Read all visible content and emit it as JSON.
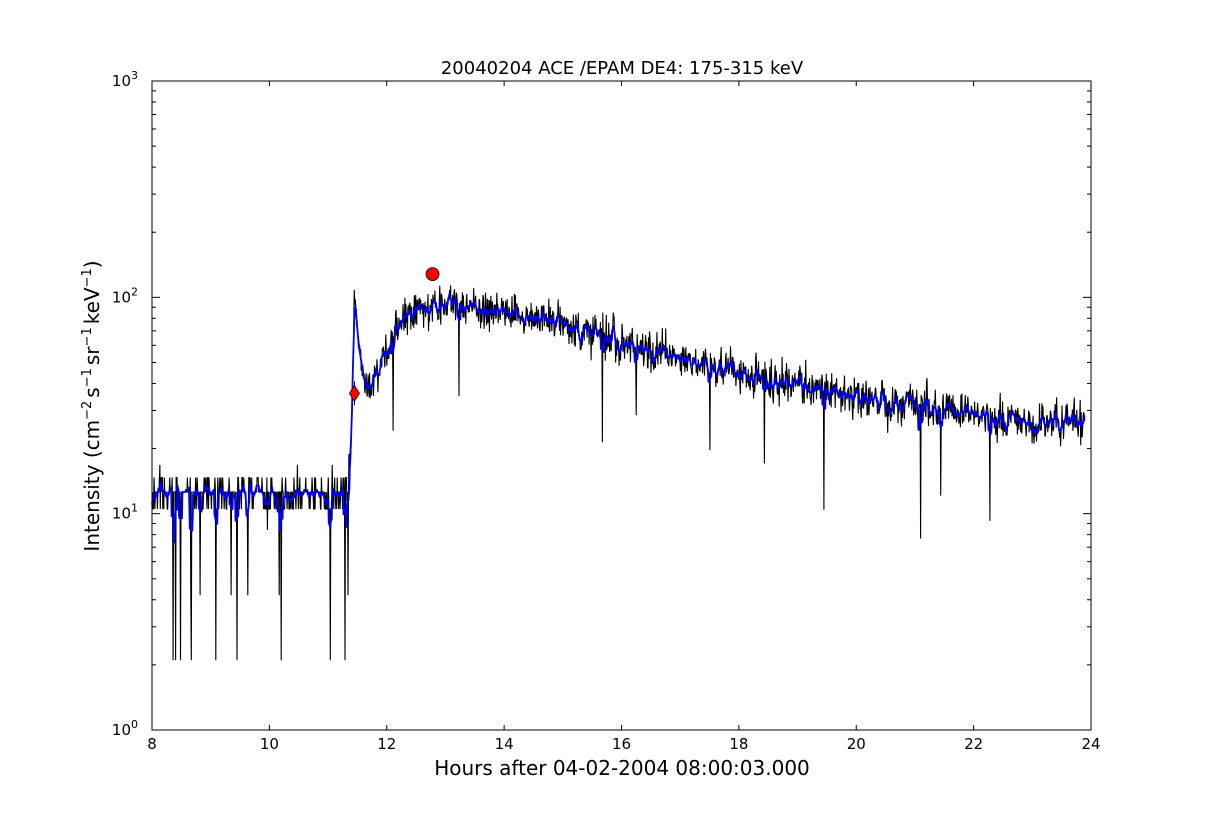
{
  "chart_data": {
    "type": "line",
    "title": "20040204 ACE /EPAM DE4: 175-315 keV",
    "xlabel": "Hours after 04-02-2004 08:00:03.000",
    "ylabel": {
      "prefix": "Intensity (cm",
      "sup1": "−2",
      "part2": "s",
      "sup2": "−1",
      "part3": "sr",
      "sup3": "−1",
      "part4": "keV",
      "sup4": "−1",
      "suffix": ")"
    },
    "x_ticks": [
      "8",
      "10",
      "12",
      "14",
      "16",
      "18",
      "20",
      "22",
      "24"
    ],
    "y_ticks": [
      {
        "base": "10",
        "exp": "0"
      },
      {
        "base": "10",
        "exp": "1"
      },
      {
        "base": "10",
        "exp": "2"
      },
      {
        "base": "10",
        "exp": "3"
      }
    ],
    "xlim": [
      8,
      24
    ],
    "ylim": [
      1,
      1000
    ],
    "yscale": "log",
    "grid": false,
    "series_colors": {
      "raw": "#000000",
      "smoothed": "#0000ff",
      "markers": "#ff0000"
    },
    "series": [
      {
        "type": "line",
        "x": [
          8.0,
          8.5,
          9.0,
          9.5,
          10.0,
          10.5,
          11.0,
          11.3,
          11.38,
          11.42,
          11.45,
          11.5,
          11.6,
          11.7,
          11.8,
          12.0,
          12.2,
          12.5,
          12.8,
          13.0,
          13.5,
          14.0,
          14.5,
          15.0,
          15.5,
          16.0,
          16.5,
          17.0,
          17.5,
          18.0,
          18.5,
          19.0,
          19.5,
          20.0,
          20.5,
          21.0,
          21.5,
          22.0,
          22.5,
          23.0,
          23.5,
          23.9
        ],
        "values": [
          12,
          13,
          12,
          12.5,
          12,
          12.5,
          12,
          13,
          15,
          40,
          120,
          70,
          45,
          38,
          42,
          58,
          75,
          85,
          90,
          92,
          88,
          85,
          80,
          75,
          68,
          62,
          57,
          52,
          48,
          45,
          42,
          39,
          37,
          35,
          33,
          32,
          30,
          29,
          28,
          27,
          26,
          26
        ]
      },
      {
        "type": "scatter",
        "x": [
          11.45,
          12.78
        ],
        "values": [
          36,
          128
        ]
      }
    ]
  }
}
